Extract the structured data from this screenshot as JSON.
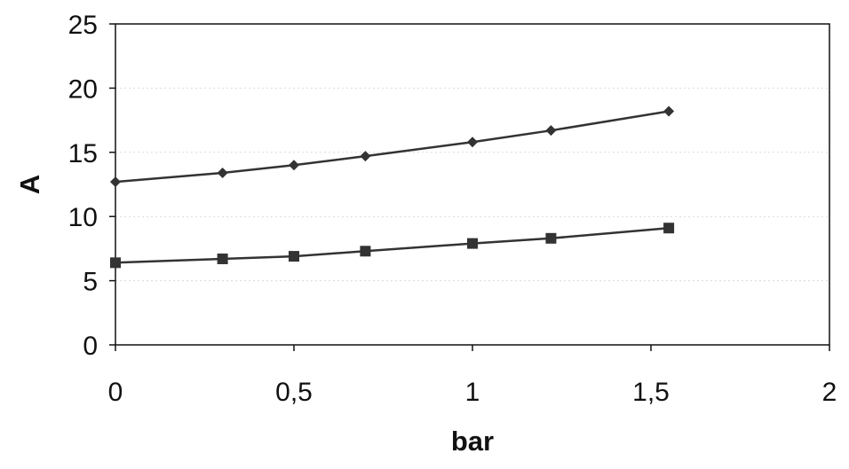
{
  "chart_data": {
    "type": "line",
    "title": "",
    "xlabel": "bar",
    "ylabel": "A",
    "xlim": [
      0,
      2
    ],
    "ylim": [
      0,
      25
    ],
    "x_ticks": [
      "0",
      "0,5",
      "1",
      "1,5",
      "2"
    ],
    "x_tick_values": [
      0,
      0.5,
      1,
      1.5,
      2
    ],
    "y_ticks": [
      "0",
      "5",
      "10",
      "15",
      "20",
      "25"
    ],
    "y_tick_values": [
      0,
      5,
      10,
      15,
      20,
      25
    ],
    "grid": "horizontal",
    "legend": "none",
    "series": [
      {
        "marker": "diamond",
        "color": "#333333",
        "x": [
          0,
          0.3,
          0.5,
          0.7,
          1.0,
          1.22,
          1.55
        ],
        "y": [
          12.7,
          13.4,
          14.0,
          14.7,
          15.8,
          16.7,
          18.2
        ]
      },
      {
        "marker": "square",
        "color": "#333333",
        "x": [
          0,
          0.3,
          0.5,
          0.7,
          1.0,
          1.22,
          1.55
        ],
        "y": [
          6.4,
          6.7,
          6.9,
          7.3,
          7.9,
          8.3,
          9.1
        ]
      }
    ]
  }
}
